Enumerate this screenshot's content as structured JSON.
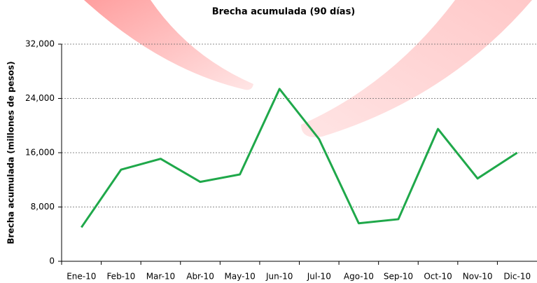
{
  "chart_data": {
    "type": "line",
    "title": "Brecha acumulada  (90 días)",
    "y_label": "Brecha acumulada (millones de pesos)",
    "categories": [
      "Ene-10",
      "Feb-10",
      "Mar-10",
      "Abr-10",
      "May-10",
      "Jun-10",
      "Jul-10",
      "Ago-10",
      "Sep-10",
      "Oct-10",
      "Nov-10",
      "Dic-10"
    ],
    "values": [
      5000,
      13500,
      15100,
      11700,
      12800,
      25400,
      18000,
      5600,
      6200,
      19500,
      12200,
      16000
    ],
    "color": "#1fa84a",
    "ylim": [
      0,
      32000
    ],
    "yticks": [
      0,
      {
        "value": 8000,
        "label": "8,000"
      },
      {
        "value": 16000,
        "label": "16,000"
      },
      {
        "value": 24000,
        "label": "24,000"
      },
      {
        "value": 32000,
        "label": "32,000"
      }
    ],
    "grid": true
  }
}
